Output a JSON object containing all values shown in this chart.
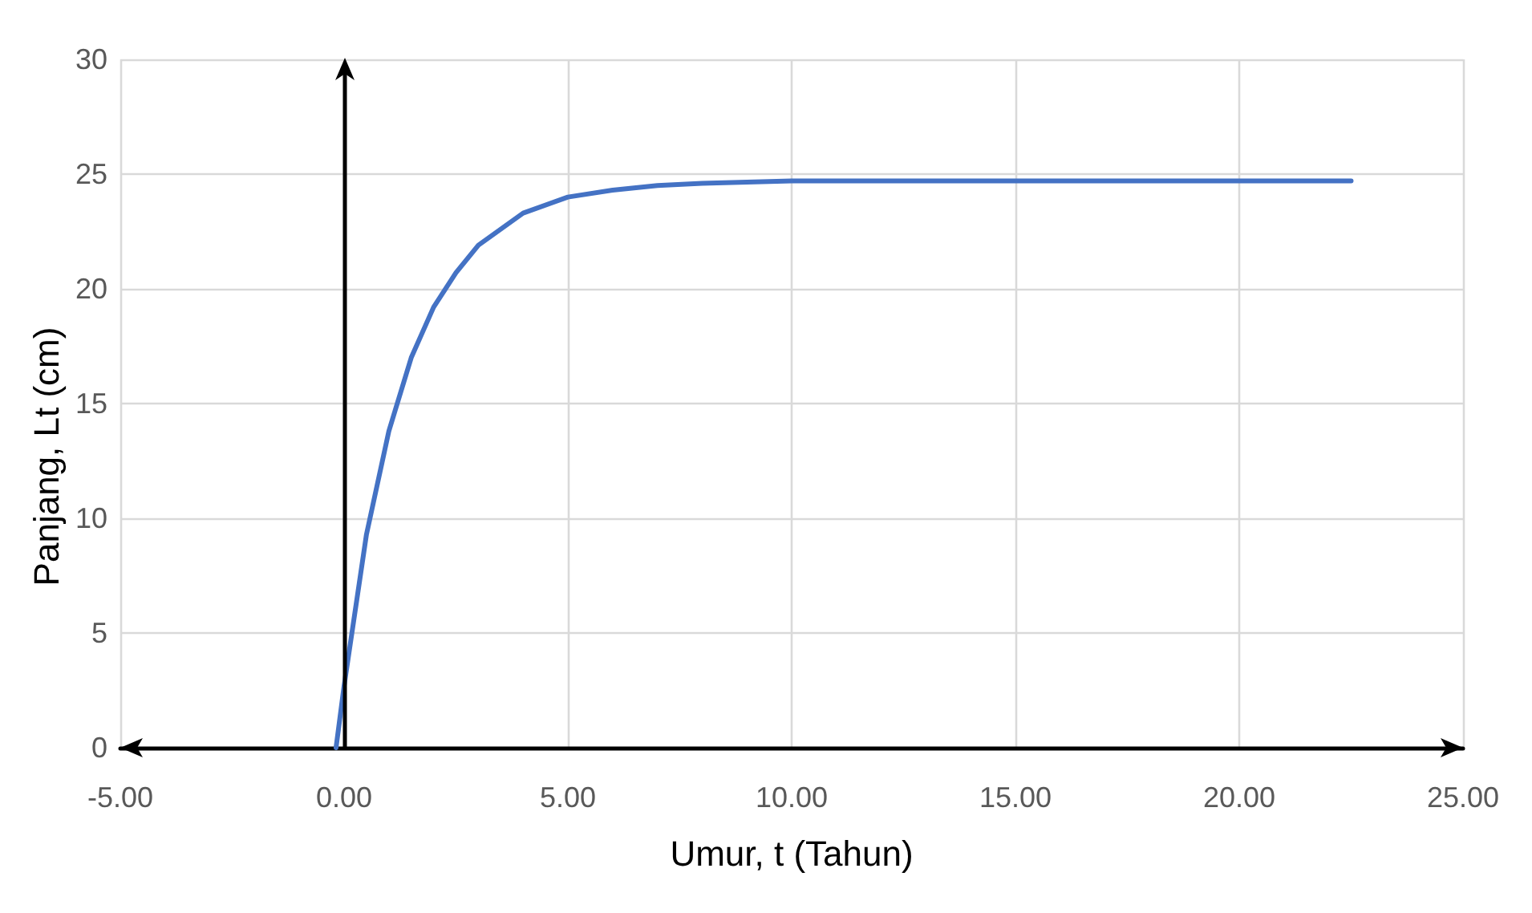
{
  "chart_data": {
    "type": "line",
    "xlabel": "Umur, t (Tahun)",
    "ylabel": "Panjang, Lt (cm)",
    "x": [
      -0.18,
      0,
      0.5,
      1,
      1.5,
      2,
      2.5,
      3,
      4,
      5,
      6,
      7,
      8,
      10,
      15,
      22.5
    ],
    "series": [
      {
        "color": "#4472c4",
        "values": [
          0,
          2.7,
          9.3,
          13.8,
          17,
          19.2,
          20.7,
          21.9,
          23.3,
          24,
          24.3,
          24.5,
          24.6,
          24.7,
          24.7,
          24.7
        ]
      }
    ],
    "xlim": [
      -5,
      25
    ],
    "xticks": [
      {
        "value": -5,
        "label": "-5.00"
      },
      {
        "value": 0,
        "label": "0.00"
      },
      {
        "value": 5,
        "label": "5.00"
      },
      {
        "value": 10,
        "label": "10.00"
      },
      {
        "value": 15,
        "label": "15.00"
      },
      {
        "value": 20,
        "label": "20.00"
      },
      {
        "value": 25,
        "label": "25.00"
      }
    ],
    "ylim": [
      0,
      30
    ],
    "yticks": [
      0,
      5,
      10,
      15,
      20,
      25,
      30
    ],
    "grid": true,
    "marker": "none"
  }
}
